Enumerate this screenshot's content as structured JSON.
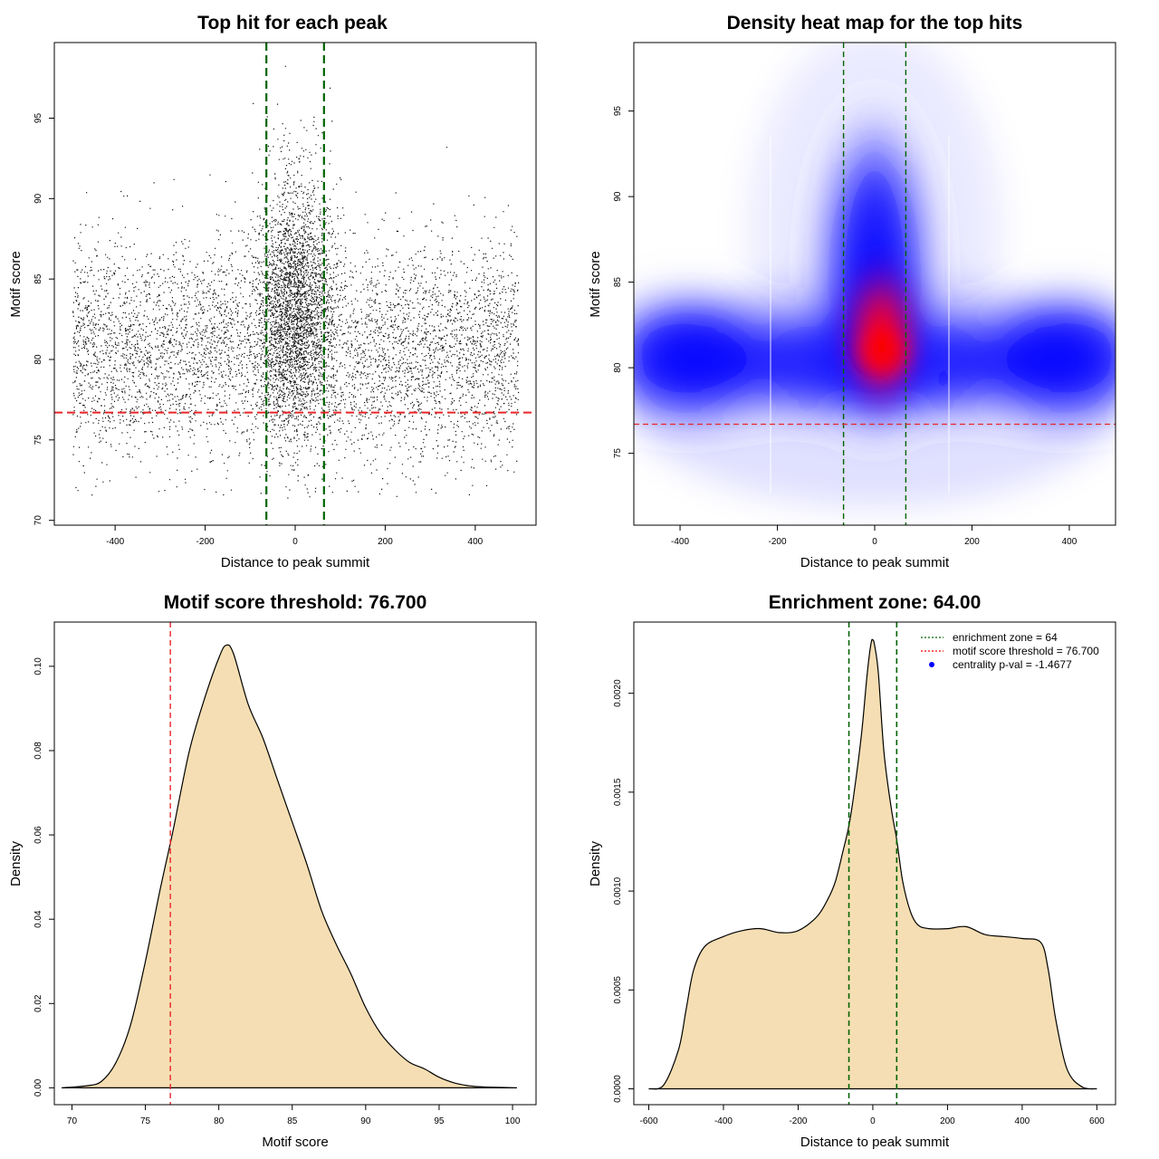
{
  "chart_data": [
    {
      "type": "scatter",
      "title": "Top hit for each peak",
      "xlabel": "Distance to peak summit",
      "ylabel": "Motif score",
      "xlim": [
        -535,
        535
      ],
      "ylim": [
        69.7,
        99.7
      ],
      "xticks": [
        -400,
        -200,
        0,
        200,
        400
      ],
      "yticks": [
        70,
        75,
        80,
        85,
        90,
        95
      ],
      "vlines": [
        -64,
        64
      ],
      "hline": 76.7,
      "points_note": "about 10000 points, x uniform in [-495, 495], y centred near 80-82, strongly concentrated around x = 0 up to 98"
    },
    {
      "type": "heatmap",
      "title": "Density heat map for the top hits",
      "xlabel": "Distance to peak summit",
      "ylabel": "Motif score",
      "xlim": [
        -495,
        495
      ],
      "ylim": [
        70.8,
        99.0
      ],
      "xticks": [
        -400,
        -200,
        0,
        200,
        400
      ],
      "yticks": [
        75,
        80,
        85,
        90,
        95
      ],
      "vlines": [
        -64,
        64
      ],
      "hline": 76.7,
      "peak": {
        "x": 15,
        "y": 81
      },
      "colors": [
        "#ffffff",
        "#0000ff",
        "#ff0000"
      ]
    },
    {
      "type": "area",
      "title": "Motif score threshold: 76.700",
      "xlabel": "Motif score",
      "ylabel": "Density",
      "xlim": [
        68.8,
        101.6
      ],
      "ylim": [
        -0.004,
        0.1105
      ],
      "xticks": [
        70,
        75,
        80,
        85,
        90,
        95,
        100
      ],
      "yticks": [
        0.0,
        0.02,
        0.04,
        0.06,
        0.08,
        0.1
      ],
      "ytick_labels": [
        "0.00",
        "0.02",
        "0.04",
        "0.06",
        "0.08",
        "0.10"
      ],
      "vline": 76.7,
      "x": [
        69.3,
        71,
        72,
        73,
        74,
        75,
        76,
        76.7,
        77,
        78,
        79,
        80,
        80.5,
        81,
        82,
        83,
        84,
        85,
        86,
        87,
        88,
        89,
        90,
        91,
        92,
        93,
        94,
        95,
        96,
        97,
        98,
        100.3
      ],
      "y": [
        0,
        0.0005,
        0.0015,
        0.006,
        0.015,
        0.03,
        0.047,
        0.058,
        0.063,
        0.08,
        0.092,
        0.102,
        0.105,
        0.103,
        0.091,
        0.083,
        0.073,
        0.063,
        0.053,
        0.042,
        0.034,
        0.027,
        0.019,
        0.013,
        0.009,
        0.006,
        0.0045,
        0.0025,
        0.0012,
        0.0005,
        0.0002,
        0
      ],
      "fill": "#f5deb3"
    },
    {
      "type": "area",
      "title": "Enrichment zone: 64.00",
      "xlabel": "Distance to peak summit",
      "ylabel": "Density",
      "xlim": [
        -640,
        650
      ],
      "ylim": [
        -8e-05,
        0.00236
      ],
      "xticks": [
        -600,
        -400,
        -200,
        0,
        200,
        400,
        600
      ],
      "yticks": [
        0.0,
        0.0005,
        0.001,
        0.0015,
        0.002
      ],
      "ytick_labels": [
        "0.0000",
        "0.0005",
        "0.0010",
        "0.0015",
        "0.0020"
      ],
      "vlines": [
        -64,
        64
      ],
      "x": [
        -600,
        -560,
        -520,
        -500,
        -480,
        -450,
        -400,
        -350,
        -300,
        -250,
        -200,
        -150,
        -120,
        -100,
        -80,
        -64,
        -50,
        -30,
        -15,
        -5,
        0,
        5,
        15,
        30,
        50,
        64,
        80,
        100,
        120,
        150,
        200,
        250,
        300,
        350,
        400,
        450,
        470,
        490,
        520,
        560,
        600
      ],
      "y": [
        0,
        2e-05,
        0.0002,
        0.0004,
        0.0006,
        0.00072,
        0.00077,
        0.0008,
        0.00081,
        0.00079,
        0.0008,
        0.00087,
        0.00096,
        0.00105,
        0.0012,
        0.00133,
        0.0015,
        0.0018,
        0.0021,
        0.00225,
        0.00227,
        0.00224,
        0.0021,
        0.0017,
        0.00141,
        0.00126,
        0.00105,
        0.0009,
        0.00083,
        0.00081,
        0.00081,
        0.00082,
        0.00078,
        0.00077,
        0.00076,
        0.00074,
        0.0006,
        0.00035,
        0.0001,
        1e-05,
        0
      ],
      "fill": "#f5deb3",
      "legend": [
        {
          "label": "enrichment zone = 64",
          "color": "#006400",
          "style": "dotted"
        },
        {
          "label": "motif score threshold = 76.700",
          "color": "#ff0000",
          "style": "dotted"
        },
        {
          "label": "centrality p-val = -1.4677",
          "color": "#0000ff",
          "style": "point"
        }
      ],
      "legend_position": "top-right"
    }
  ]
}
